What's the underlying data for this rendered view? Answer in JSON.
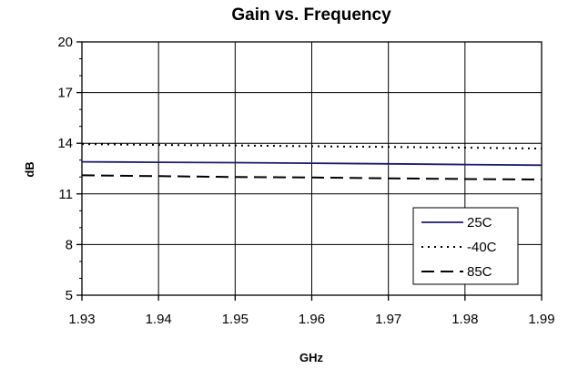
{
  "chart_data": {
    "type": "line",
    "title": "Gain vs. Frequency",
    "xlabel": "GHz",
    "ylabel": "dB",
    "xlim": [
      1.93,
      1.99
    ],
    "ylim": [
      5,
      20
    ],
    "x_ticks": [
      "1.93",
      "1.94",
      "1.95",
      "1.96",
      "1.97",
      "1.98",
      "1.99"
    ],
    "y_ticks": [
      "5",
      "8",
      "11",
      "14",
      "17",
      "20"
    ],
    "grid": true,
    "legend_position": "bottom-right",
    "x": [
      1.93,
      1.94,
      1.95,
      1.96,
      1.97,
      1.98,
      1.99
    ],
    "series": [
      {
        "name": "25C",
        "style": "solid",
        "color": "#1c1c6e",
        "values": [
          12.9,
          12.87,
          12.85,
          12.82,
          12.78,
          12.74,
          12.7
        ]
      },
      {
        "name": "-40C",
        "style": "dotted",
        "color": "#000000",
        "values": [
          13.95,
          13.9,
          13.87,
          13.82,
          13.78,
          13.74,
          13.68
        ]
      },
      {
        "name": "85C",
        "style": "dashed",
        "color": "#000000",
        "values": [
          12.1,
          12.05,
          12.0,
          11.97,
          11.92,
          11.88,
          11.85
        ]
      }
    ]
  }
}
